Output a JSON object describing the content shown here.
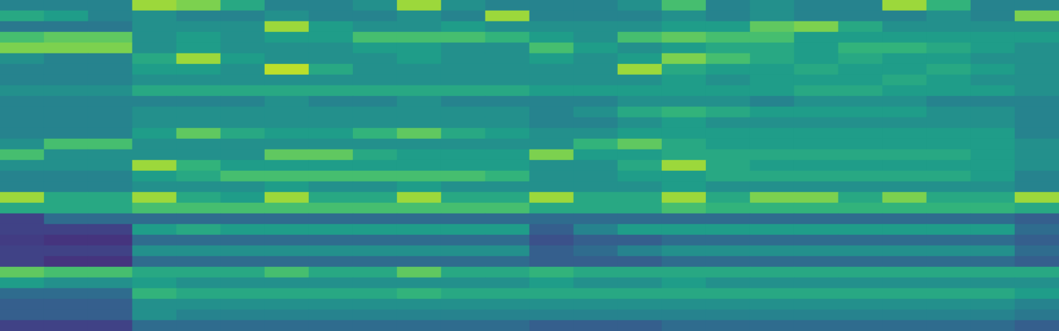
{
  "chart_data": {
    "type": "heatmap",
    "x": [
      0,
      1,
      2,
      3,
      4,
      5,
      6,
      7,
      8,
      9,
      10,
      11,
      12,
      13,
      14,
      15,
      16,
      17,
      18,
      19,
      20,
      21,
      22,
      23
    ],
    "y": [
      0,
      1,
      2,
      3,
      4,
      5,
      6,
      7,
      8,
      9,
      10,
      11,
      12,
      13,
      14,
      15,
      16,
      17,
      18,
      19,
      20,
      21,
      22,
      23,
      24,
      25,
      26,
      27,
      28,
      29,
      30
    ],
    "zlim": [
      0,
      1
    ],
    "tick_labels": false,
    "cells": [
      [
        0.45,
        0.45,
        0.45,
        0.85,
        0.8,
        0.6,
        0.45,
        0.45,
        0.5,
        0.85,
        0.5,
        0.45,
        0.45,
        0.45,
        0.5,
        0.7,
        0.45,
        0.5,
        0.45,
        0.45,
        0.85,
        0.65,
        0.45,
        0.45
      ],
      [
        0.6,
        0.55,
        0.45,
        0.5,
        0.45,
        0.45,
        0.5,
        0.45,
        0.45,
        0.5,
        0.45,
        0.85,
        0.45,
        0.45,
        0.45,
        0.5,
        0.45,
        0.5,
        0.45,
        0.45,
        0.45,
        0.5,
        0.45,
        0.8
      ],
      [
        0.4,
        0.4,
        0.4,
        0.5,
        0.5,
        0.5,
        0.85,
        0.55,
        0.5,
        0.5,
        0.55,
        0.5,
        0.5,
        0.5,
        0.5,
        0.55,
        0.55,
        0.75,
        0.8,
        0.6,
        0.5,
        0.5,
        0.5,
        0.5
      ],
      [
        0.7,
        0.75,
        0.75,
        0.5,
        0.55,
        0.5,
        0.55,
        0.55,
        0.7,
        0.7,
        0.7,
        0.65,
        0.55,
        0.5,
        0.7,
        0.75,
        0.7,
        0.7,
        0.55,
        0.55,
        0.55,
        0.55,
        0.55,
        0.55
      ],
      [
        0.8,
        0.8,
        0.8,
        0.5,
        0.55,
        0.5,
        0.5,
        0.5,
        0.55,
        0.55,
        0.5,
        0.5,
        0.7,
        0.55,
        0.5,
        0.55,
        0.6,
        0.6,
        0.55,
        0.65,
        0.65,
        0.6,
        0.55,
        0.5
      ],
      [
        0.5,
        0.45,
        0.45,
        0.6,
        0.85,
        0.55,
        0.5,
        0.5,
        0.5,
        0.55,
        0.5,
        0.5,
        0.55,
        0.5,
        0.55,
        0.8,
        0.7,
        0.6,
        0.55,
        0.6,
        0.55,
        0.55,
        0.5,
        0.5
      ],
      [
        0.45,
        0.45,
        0.45,
        0.55,
        0.55,
        0.5,
        0.9,
        0.6,
        0.5,
        0.5,
        0.5,
        0.5,
        0.5,
        0.5,
        0.85,
        0.6,
        0.55,
        0.55,
        0.6,
        0.55,
        0.55,
        0.6,
        0.55,
        0.5
      ],
      [
        0.45,
        0.45,
        0.45,
        0.5,
        0.5,
        0.5,
        0.5,
        0.5,
        0.5,
        0.5,
        0.5,
        0.5,
        0.5,
        0.5,
        0.5,
        0.55,
        0.5,
        0.55,
        0.55,
        0.55,
        0.6,
        0.55,
        0.5,
        0.5
      ],
      [
        0.5,
        0.5,
        0.5,
        0.6,
        0.6,
        0.6,
        0.6,
        0.6,
        0.6,
        0.6,
        0.6,
        0.6,
        0.55,
        0.55,
        0.55,
        0.55,
        0.55,
        0.55,
        0.6,
        0.6,
        0.55,
        0.55,
        0.55,
        0.5
      ],
      [
        0.45,
        0.45,
        0.45,
        0.45,
        0.45,
        0.45,
        0.5,
        0.45,
        0.45,
        0.5,
        0.45,
        0.45,
        0.45,
        0.45,
        0.5,
        0.5,
        0.5,
        0.45,
        0.5,
        0.5,
        0.5,
        0.45,
        0.45,
        0.45
      ],
      [
        0.45,
        0.45,
        0.45,
        0.5,
        0.5,
        0.5,
        0.5,
        0.5,
        0.5,
        0.5,
        0.5,
        0.5,
        0.45,
        0.5,
        0.6,
        0.65,
        0.6,
        0.55,
        0.55,
        0.55,
        0.55,
        0.5,
        0.5,
        0.45
      ],
      [
        0.45,
        0.45,
        0.45,
        0.5,
        0.5,
        0.5,
        0.5,
        0.5,
        0.5,
        0.5,
        0.5,
        0.5,
        0.45,
        0.45,
        0.5,
        0.55,
        0.5,
        0.5,
        0.5,
        0.5,
        0.5,
        0.5,
        0.5,
        0.45
      ],
      [
        0.45,
        0.45,
        0.45,
        0.55,
        0.75,
        0.6,
        0.55,
        0.55,
        0.65,
        0.75,
        0.6,
        0.55,
        0.5,
        0.5,
        0.55,
        0.55,
        0.55,
        0.55,
        0.55,
        0.55,
        0.55,
        0.55,
        0.55,
        0.45
      ],
      [
        0.5,
        0.7,
        0.7,
        0.5,
        0.5,
        0.5,
        0.5,
        0.5,
        0.5,
        0.5,
        0.5,
        0.5,
        0.5,
        0.65,
        0.75,
        0.6,
        0.55,
        0.55,
        0.55,
        0.55,
        0.55,
        0.55,
        0.55,
        0.5
      ],
      [
        0.7,
        0.5,
        0.5,
        0.5,
        0.5,
        0.5,
        0.75,
        0.75,
        0.6,
        0.55,
        0.55,
        0.55,
        0.8,
        0.55,
        0.55,
        0.6,
        0.6,
        0.6,
        0.6,
        0.6,
        0.6,
        0.6,
        0.55,
        0.5
      ],
      [
        0.5,
        0.5,
        0.5,
        0.85,
        0.65,
        0.55,
        0.55,
        0.55,
        0.55,
        0.55,
        0.55,
        0.55,
        0.5,
        0.5,
        0.6,
        0.85,
        0.6,
        0.55,
        0.55,
        0.55,
        0.55,
        0.55,
        0.55,
        0.5
      ],
      [
        0.45,
        0.45,
        0.45,
        0.55,
        0.6,
        0.7,
        0.7,
        0.7,
        0.7,
        0.7,
        0.7,
        0.65,
        0.5,
        0.5,
        0.55,
        0.55,
        0.6,
        0.6,
        0.6,
        0.6,
        0.6,
        0.6,
        0.55,
        0.45
      ],
      [
        0.45,
        0.45,
        0.45,
        0.5,
        0.5,
        0.5,
        0.55,
        0.5,
        0.5,
        0.55,
        0.5,
        0.5,
        0.5,
        0.5,
        0.5,
        0.55,
        0.5,
        0.5,
        0.5,
        0.5,
        0.5,
        0.5,
        0.5,
        0.45
      ],
      [
        0.85,
        0.6,
        0.6,
        0.85,
        0.6,
        0.55,
        0.85,
        0.6,
        0.6,
        0.85,
        0.6,
        0.6,
        0.85,
        0.6,
        0.6,
        0.85,
        0.6,
        0.8,
        0.8,
        0.6,
        0.8,
        0.6,
        0.6,
        0.85
      ],
      [
        0.6,
        0.6,
        0.6,
        0.7,
        0.7,
        0.7,
        0.7,
        0.7,
        0.7,
        0.7,
        0.7,
        0.7,
        0.6,
        0.6,
        0.6,
        0.7,
        0.65,
        0.65,
        0.65,
        0.65,
        0.65,
        0.65,
        0.65,
        0.6
      ],
      [
        0.2,
        0.35,
        0.35,
        0.35,
        0.35,
        0.35,
        0.35,
        0.35,
        0.35,
        0.35,
        0.35,
        0.35,
        0.35,
        0.35,
        0.35,
        0.35,
        0.35,
        0.35,
        0.35,
        0.35,
        0.35,
        0.35,
        0.35,
        0.3
      ],
      [
        0.2,
        0.2,
        0.2,
        0.55,
        0.6,
        0.55,
        0.55,
        0.55,
        0.55,
        0.55,
        0.55,
        0.55,
        0.3,
        0.45,
        0.55,
        0.55,
        0.55,
        0.55,
        0.55,
        0.55,
        0.55,
        0.55,
        0.55,
        0.35
      ],
      [
        0.18,
        0.15,
        0.15,
        0.35,
        0.35,
        0.35,
        0.35,
        0.35,
        0.35,
        0.35,
        0.35,
        0.35,
        0.25,
        0.3,
        0.3,
        0.35,
        0.35,
        0.35,
        0.35,
        0.35,
        0.35,
        0.35,
        0.35,
        0.3
      ],
      [
        0.2,
        0.2,
        0.2,
        0.5,
        0.5,
        0.5,
        0.5,
        0.5,
        0.5,
        0.5,
        0.5,
        0.5,
        0.3,
        0.35,
        0.45,
        0.5,
        0.5,
        0.5,
        0.5,
        0.5,
        0.5,
        0.5,
        0.5,
        0.35
      ],
      [
        0.2,
        0.15,
        0.15,
        0.35,
        0.35,
        0.35,
        0.35,
        0.35,
        0.35,
        0.35,
        0.35,
        0.35,
        0.3,
        0.3,
        0.3,
        0.35,
        0.35,
        0.35,
        0.35,
        0.35,
        0.35,
        0.35,
        0.35,
        0.3
      ],
      [
        0.75,
        0.7,
        0.7,
        0.6,
        0.6,
        0.6,
        0.7,
        0.6,
        0.6,
        0.75,
        0.6,
        0.6,
        0.65,
        0.6,
        0.6,
        0.6,
        0.6,
        0.6,
        0.6,
        0.6,
        0.6,
        0.6,
        0.6,
        0.6
      ],
      [
        0.55,
        0.5,
        0.5,
        0.55,
        0.5,
        0.5,
        0.5,
        0.5,
        0.5,
        0.5,
        0.5,
        0.5,
        0.55,
        0.5,
        0.5,
        0.55,
        0.5,
        0.5,
        0.5,
        0.5,
        0.5,
        0.5,
        0.5,
        0.5
      ],
      [
        0.35,
        0.35,
        0.35,
        0.65,
        0.6,
        0.6,
        0.6,
        0.6,
        0.6,
        0.65,
        0.6,
        0.6,
        0.6,
        0.6,
        0.6,
        0.6,
        0.6,
        0.6,
        0.6,
        0.6,
        0.6,
        0.6,
        0.6,
        0.55
      ],
      [
        0.3,
        0.3,
        0.3,
        0.5,
        0.5,
        0.5,
        0.5,
        0.5,
        0.5,
        0.5,
        0.5,
        0.5,
        0.5,
        0.5,
        0.5,
        0.5,
        0.5,
        0.5,
        0.5,
        0.5,
        0.5,
        0.5,
        0.5,
        0.45
      ],
      [
        0.3,
        0.3,
        0.3,
        0.5,
        0.45,
        0.45,
        0.45,
        0.45,
        0.45,
        0.45,
        0.45,
        0.45,
        0.45,
        0.45,
        0.45,
        0.45,
        0.45,
        0.45,
        0.45,
        0.45,
        0.45,
        0.45,
        0.45,
        0.4
      ],
      [
        0.2,
        0.2,
        0.2,
        0.35,
        0.35,
        0.35,
        0.35,
        0.35,
        0.35,
        0.35,
        0.35,
        0.35,
        0.3,
        0.3,
        0.3,
        0.35,
        0.35,
        0.35,
        0.35,
        0.35,
        0.35,
        0.35,
        0.35,
        0.3
      ]
    ]
  }
}
